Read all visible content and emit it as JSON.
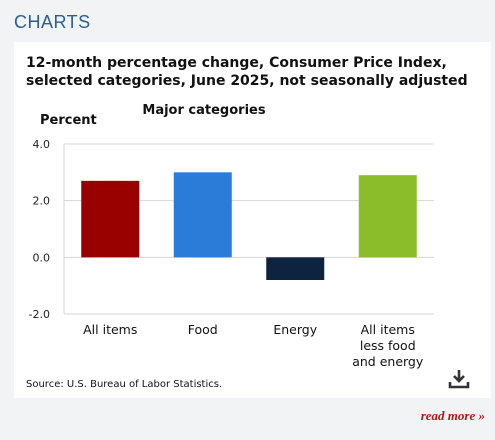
{
  "section": {
    "header": "CHARTS"
  },
  "chart_data": {
    "type": "bar",
    "title": "12-month percentage change, Consumer Price Index, selected categories, June 2025, not seasonally adjusted",
    "subtitle": "Major categories",
    "ylabel": "Percent",
    "xlabel": "",
    "ylim": [
      -2.0,
      4.0
    ],
    "yticks": [
      "4.0",
      "2.0",
      "0.0",
      "-2.0"
    ],
    "categories": [
      "All items",
      "Food",
      "Energy",
      "All items less food and energy"
    ],
    "category_lines": [
      [
        "All items"
      ],
      [
        "Food"
      ],
      [
        "Energy"
      ],
      [
        "All items",
        "less food",
        "and energy"
      ]
    ],
    "values": [
      2.7,
      3.0,
      -0.8,
      2.9
    ],
    "colors": [
      "#990000",
      "#2b7bd8",
      "#0d2340",
      "#8bbd2b"
    ],
    "source": "Source: U.S. Bureau of Labor Statistics.",
    "grid": true
  },
  "footer": {
    "read_more": "read more »"
  }
}
